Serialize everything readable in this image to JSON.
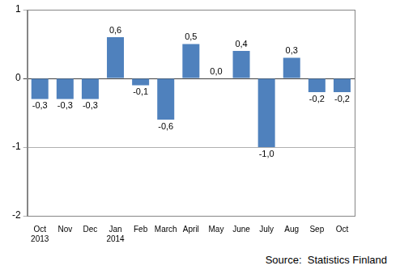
{
  "chart_data": {
    "type": "bar",
    "categories": [
      [
        "Oct",
        "2013"
      ],
      "Nov",
      "Dec",
      [
        "Jan",
        "2014"
      ],
      "Feb",
      "March",
      "April",
      "May",
      "June",
      "July",
      "Aug",
      "Sep",
      "Oct"
    ],
    "values": [
      -0.3,
      -0.3,
      -0.3,
      0.6,
      -0.1,
      -0.6,
      0.5,
      0.0,
      0.4,
      -1.0,
      0.3,
      -0.2,
      -0.2
    ],
    "value_labels": [
      "-0,3",
      "-0,3",
      "-0,3",
      "0,6",
      "-0,1",
      "-0,6",
      "0,5",
      "0,0",
      "0,4",
      "-1,0",
      "0,3",
      "-0,2",
      "-0,2"
    ],
    "color": "#4f81bd",
    "ylim": [
      -2,
      1
    ],
    "yticks": [
      -2,
      -1,
      0,
      1
    ],
    "grid": true,
    "data_labels": true,
    "annotations": [
      "Source:  Statistics Finland"
    ]
  }
}
